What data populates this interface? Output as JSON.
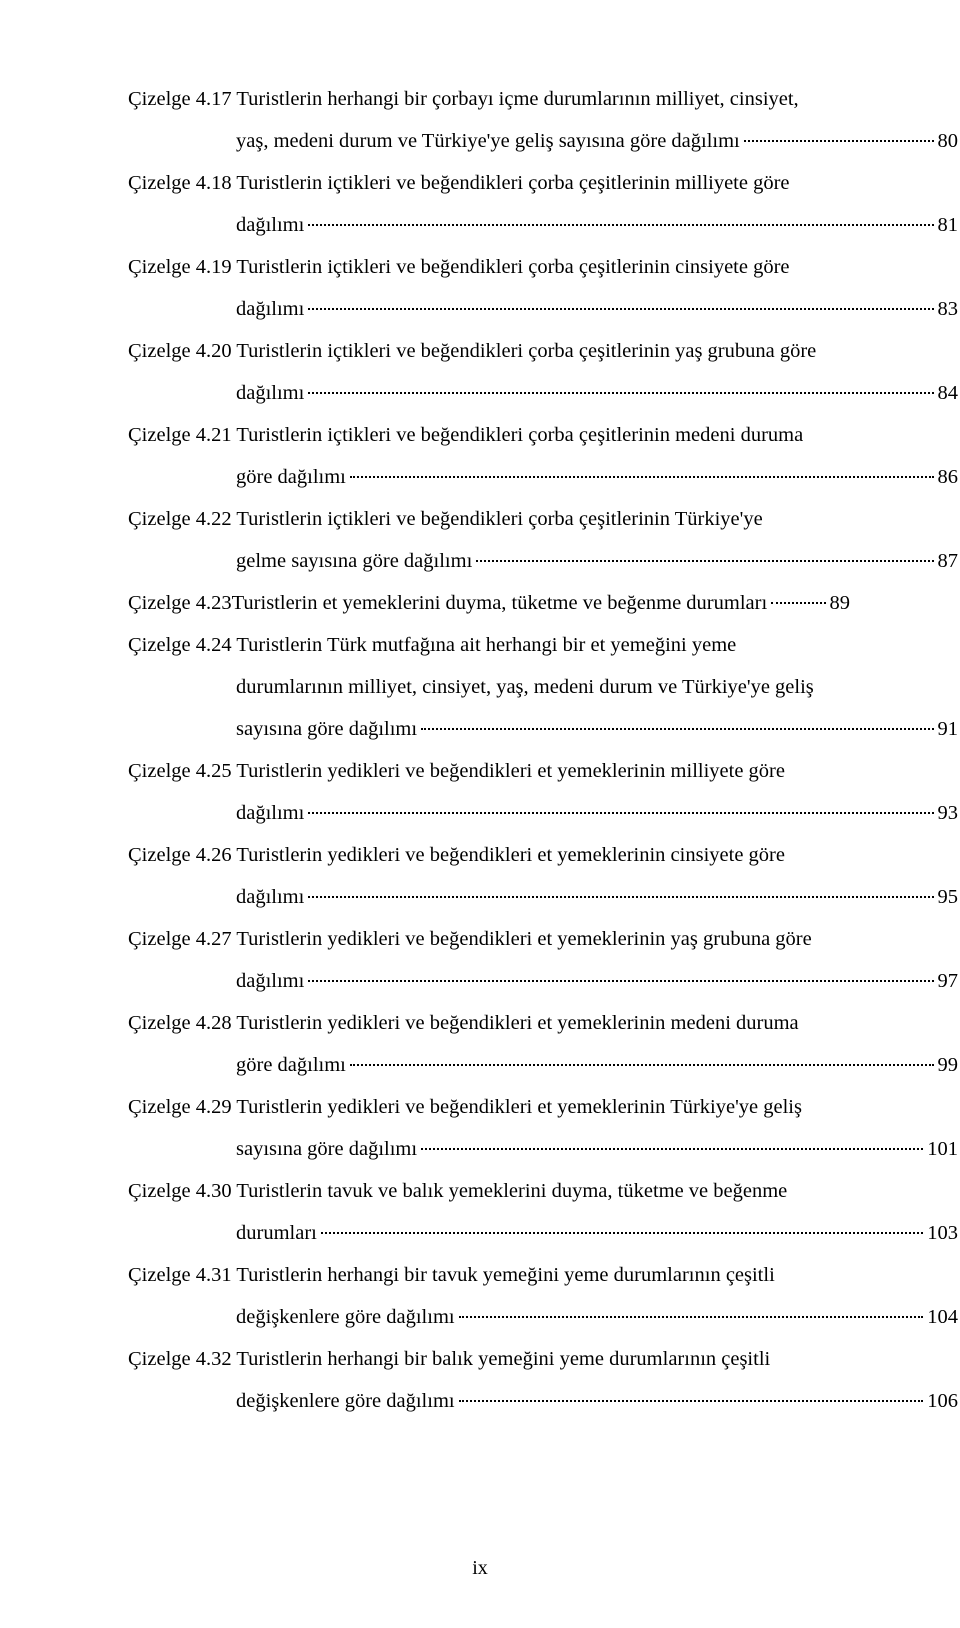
{
  "page_number": "ix",
  "label_prefix": "Çizelge ",
  "entries": [
    {
      "num": "4.17",
      "lines": [
        "Turistlerin herhangi bir çorbayı içme durumlarının milliyet, cinsiyet,",
        "yaş, medeni durum ve Türkiye'ye geliş sayısına göre dağılımı"
      ],
      "page": "80"
    },
    {
      "num": "4.18",
      "lines": [
        "Turistlerin içtikleri ve beğendikleri çorba çeşitlerinin milliyete göre",
        "dağılımı"
      ],
      "page": "81"
    },
    {
      "num": "4.19",
      "lines": [
        "Turistlerin içtikleri ve beğendikleri çorba çeşitlerinin cinsiyete göre",
        "dağılımı"
      ],
      "page": "83"
    },
    {
      "num": "4.20",
      "lines": [
        "Turistlerin içtikleri ve beğendikleri çorba çeşitlerinin yaş grubuna göre",
        "dağılımı"
      ],
      "page": "84"
    },
    {
      "num": "4.21",
      "lines": [
        "Turistlerin içtikleri ve beğendikleri çorba çeşitlerinin medeni duruma",
        "göre dağılımı"
      ],
      "page": "86"
    },
    {
      "num": "4.22",
      "lines": [
        "Turistlerin içtikleri ve beğendikleri çorba çeşitlerinin Türkiye'ye",
        "gelme sayısına göre dağılımı"
      ],
      "page": "87"
    },
    {
      "num": "4.23",
      "lines": [
        "Turistlerin et yemeklerini duyma, tüketme ve beğenme durumları"
      ],
      "page": "89"
    },
    {
      "num": "4.24",
      "lines": [
        "Turistlerin Türk mutfağına ait herhangi bir et yemeğini yeme",
        "durumlarının milliyet, cinsiyet, yaş, medeni durum ve Türkiye'ye geliş",
        "sayısına göre dağılımı"
      ],
      "page": "91"
    },
    {
      "num": "4.25",
      "lines": [
        "Turistlerin yedikleri ve beğendikleri et yemeklerinin milliyete göre",
        "dağılımı"
      ],
      "page": "93"
    },
    {
      "num": "4.26",
      "lines": [
        "Turistlerin yedikleri ve beğendikleri et yemeklerinin cinsiyete göre",
        "dağılımı"
      ],
      "page": "95"
    },
    {
      "num": "4.27",
      "lines": [
        "Turistlerin yedikleri ve beğendikleri et yemeklerinin yaş grubuna göre",
        "dağılımı"
      ],
      "page": "97"
    },
    {
      "num": "4.28",
      "lines": [
        "Turistlerin yedikleri ve beğendikleri et yemeklerinin medeni duruma",
        "göre dağılımı"
      ],
      "page": "99"
    },
    {
      "num": "4.29",
      "lines": [
        "Turistlerin yedikleri ve beğendikleri et yemeklerinin Türkiye'ye geliş",
        "sayısına göre dağılımı"
      ],
      "page": "101"
    },
    {
      "num": "4.30",
      "lines": [
        "Turistlerin tavuk ve balık yemeklerini duyma, tüketme ve beğenme",
        "durumları"
      ],
      "page": "103"
    },
    {
      "num": "4.31",
      "lines": [
        "Turistlerin herhangi bir tavuk yemeğini yeme durumlarının çeşitli",
        "değişkenlere göre dağılımı"
      ],
      "page": "104"
    },
    {
      "num": "4.32",
      "lines": [
        "Turistlerin herhangi bir balık yemeğini yeme durumlarının çeşitli",
        "değişkenlere göre dağılımı"
      ],
      "page": "106"
    }
  ]
}
